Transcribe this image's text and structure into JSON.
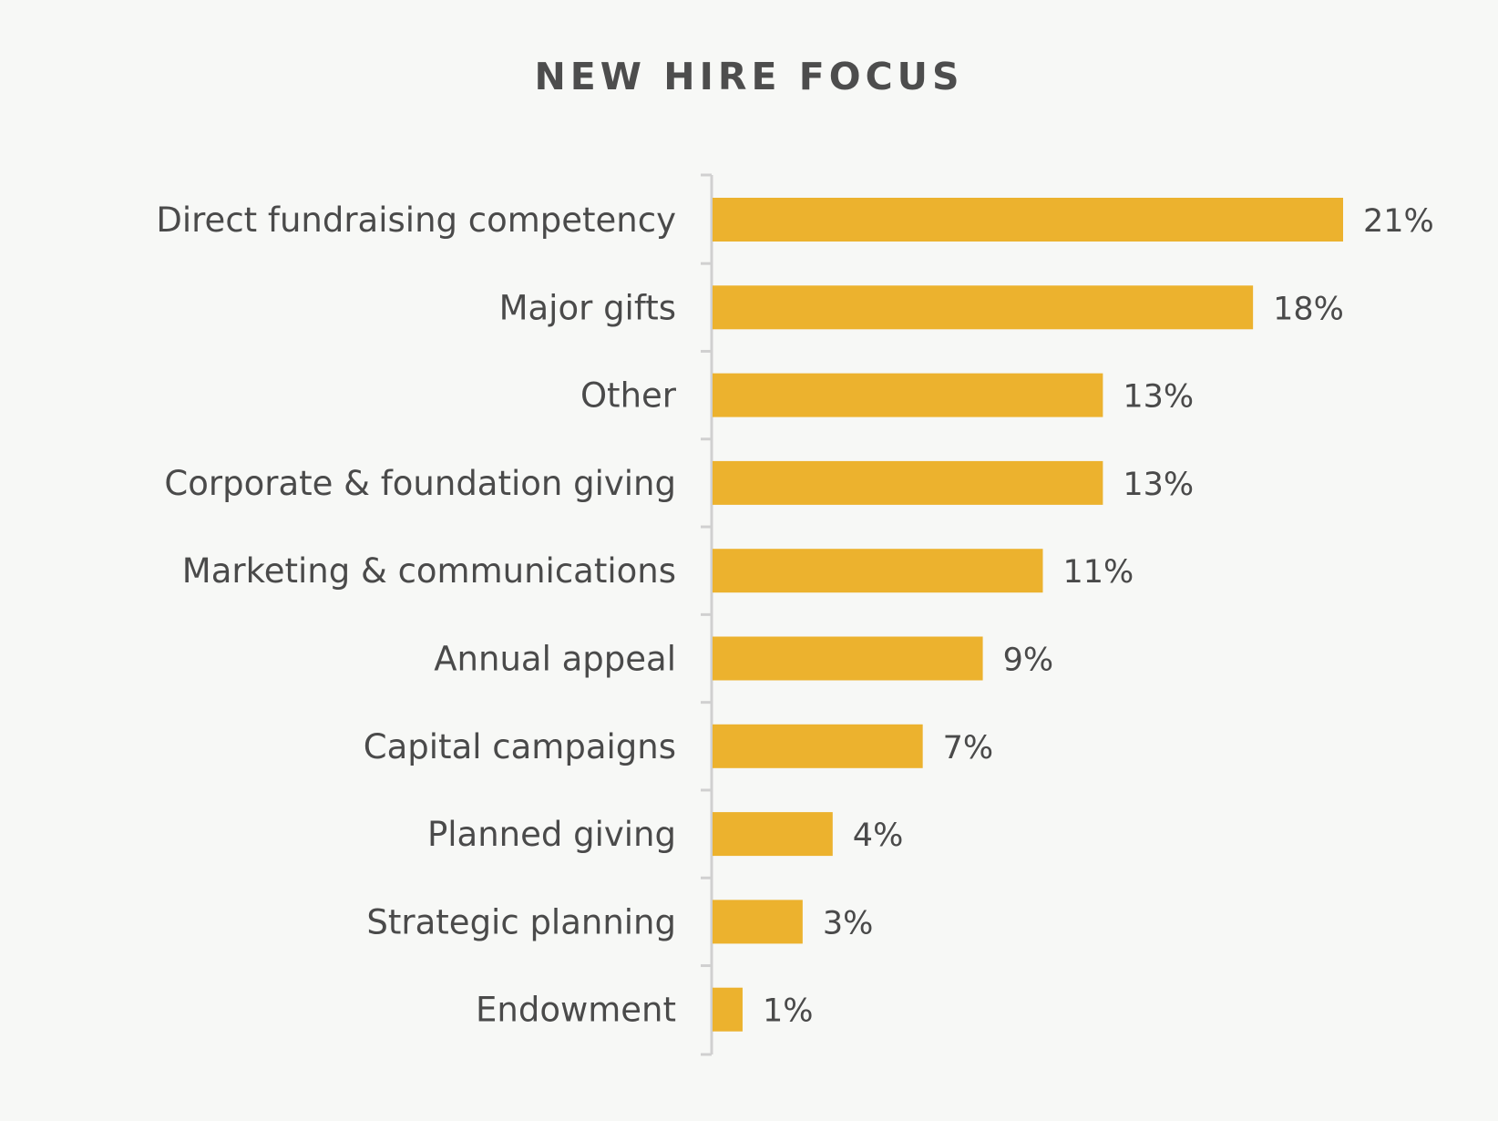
{
  "chart_data": {
    "type": "bar",
    "orientation": "horizontal",
    "title": "NEW HIRE FOCUS",
    "categories": [
      "Direct fundraising competency",
      "Major gifts",
      "Other",
      "Corporate & foundation giving",
      "Marketing & communications",
      "Annual appeal",
      "Capital campaigns",
      "Planned giving",
      "Strategic planning",
      "Endowment"
    ],
    "values": [
      21,
      18,
      13,
      13,
      11,
      9,
      7,
      4,
      3,
      1
    ],
    "value_labels": [
      "21%",
      "18%",
      "13%",
      "13%",
      "11%",
      "9%",
      "7%",
      "4%",
      "3%",
      "1%"
    ],
    "value_suffix": "%",
    "xlim": [
      0,
      21
    ],
    "grid": false,
    "legend": "none",
    "bar_color": "#ecb22e",
    "axis_color": "#d0d0d0",
    "text_color": "#4a4a4a",
    "background": "#f7f8f6"
  }
}
